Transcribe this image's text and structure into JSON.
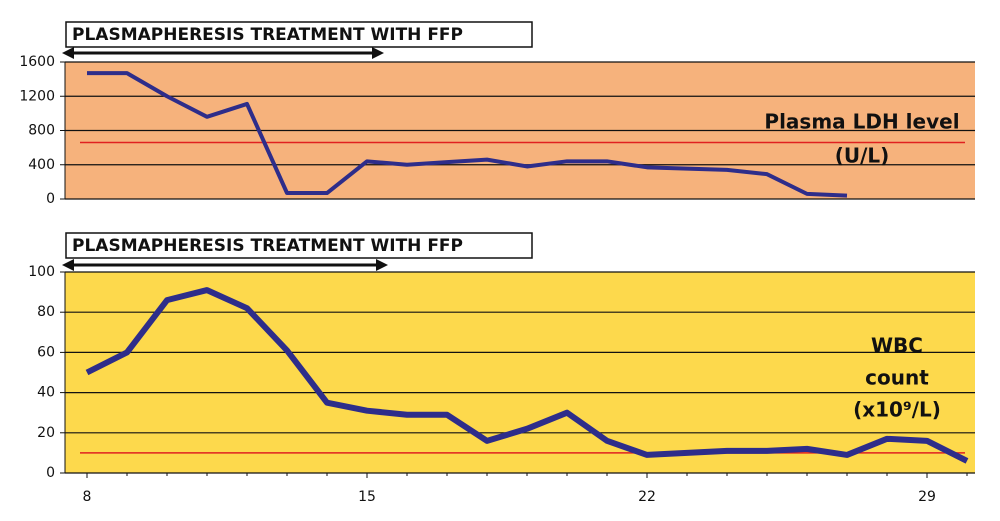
{
  "chart_data": [
    {
      "type": "line",
      "title": "PLASMAPHERESIS TREATMENT WITH FFP",
      "annotations": [
        "Plasma LDH level",
        "(U/L)"
      ],
      "background": "#f6b27c",
      "x": [
        8,
        9,
        10,
        11,
        12,
        13,
        14,
        15,
        16,
        17,
        18,
        19,
        20,
        21,
        22,
        23,
        24,
        25,
        26,
        27
      ],
      "series": [
        {
          "color": "#2e2d8a",
          "values": [
            1470,
            1470,
            1200,
            960,
            1110,
            70,
            70,
            440,
            400,
            430,
            460,
            380,
            440,
            440,
            370,
            355,
            340,
            290,
            60,
            40
          ]
        }
      ],
      "reference_line": {
        "value": 660,
        "color": "#e02020"
      },
      "xlim": [
        7.45,
        30.2
      ],
      "ylim": [
        0,
        1600
      ],
      "yticks": [
        0,
        400,
        800,
        1200,
        1600
      ],
      "grid": true
    },
    {
      "type": "line",
      "title": "PLASMAPHERESIS TREATMENT WITH FFP",
      "annotations": [
        "WBC",
        "count",
        "(x10⁹/L)"
      ],
      "background": "#fdd94c",
      "x": [
        8,
        9,
        10,
        11,
        12,
        13,
        14,
        15,
        16,
        17,
        18,
        19,
        20,
        21,
        22,
        23,
        24,
        25,
        26,
        27,
        28,
        29,
        30
      ],
      "series": [
        {
          "color": "#2e2d8a",
          "values": [
            50,
            60,
            86,
            91,
            82,
            61,
            35,
            31,
            29,
            29,
            16,
            22,
            30,
            16,
            9,
            10,
            11,
            11,
            12,
            9,
            17,
            16,
            6
          ]
        }
      ],
      "reference_line": {
        "value": 10,
        "color": "#e02020"
      },
      "xlim": [
        7.45,
        30.2
      ],
      "xticks": [
        8,
        15,
        22,
        29
      ],
      "ylim": [
        0,
        100
      ],
      "yticks": [
        0,
        20,
        40,
        60,
        80,
        100
      ],
      "grid": true
    }
  ]
}
